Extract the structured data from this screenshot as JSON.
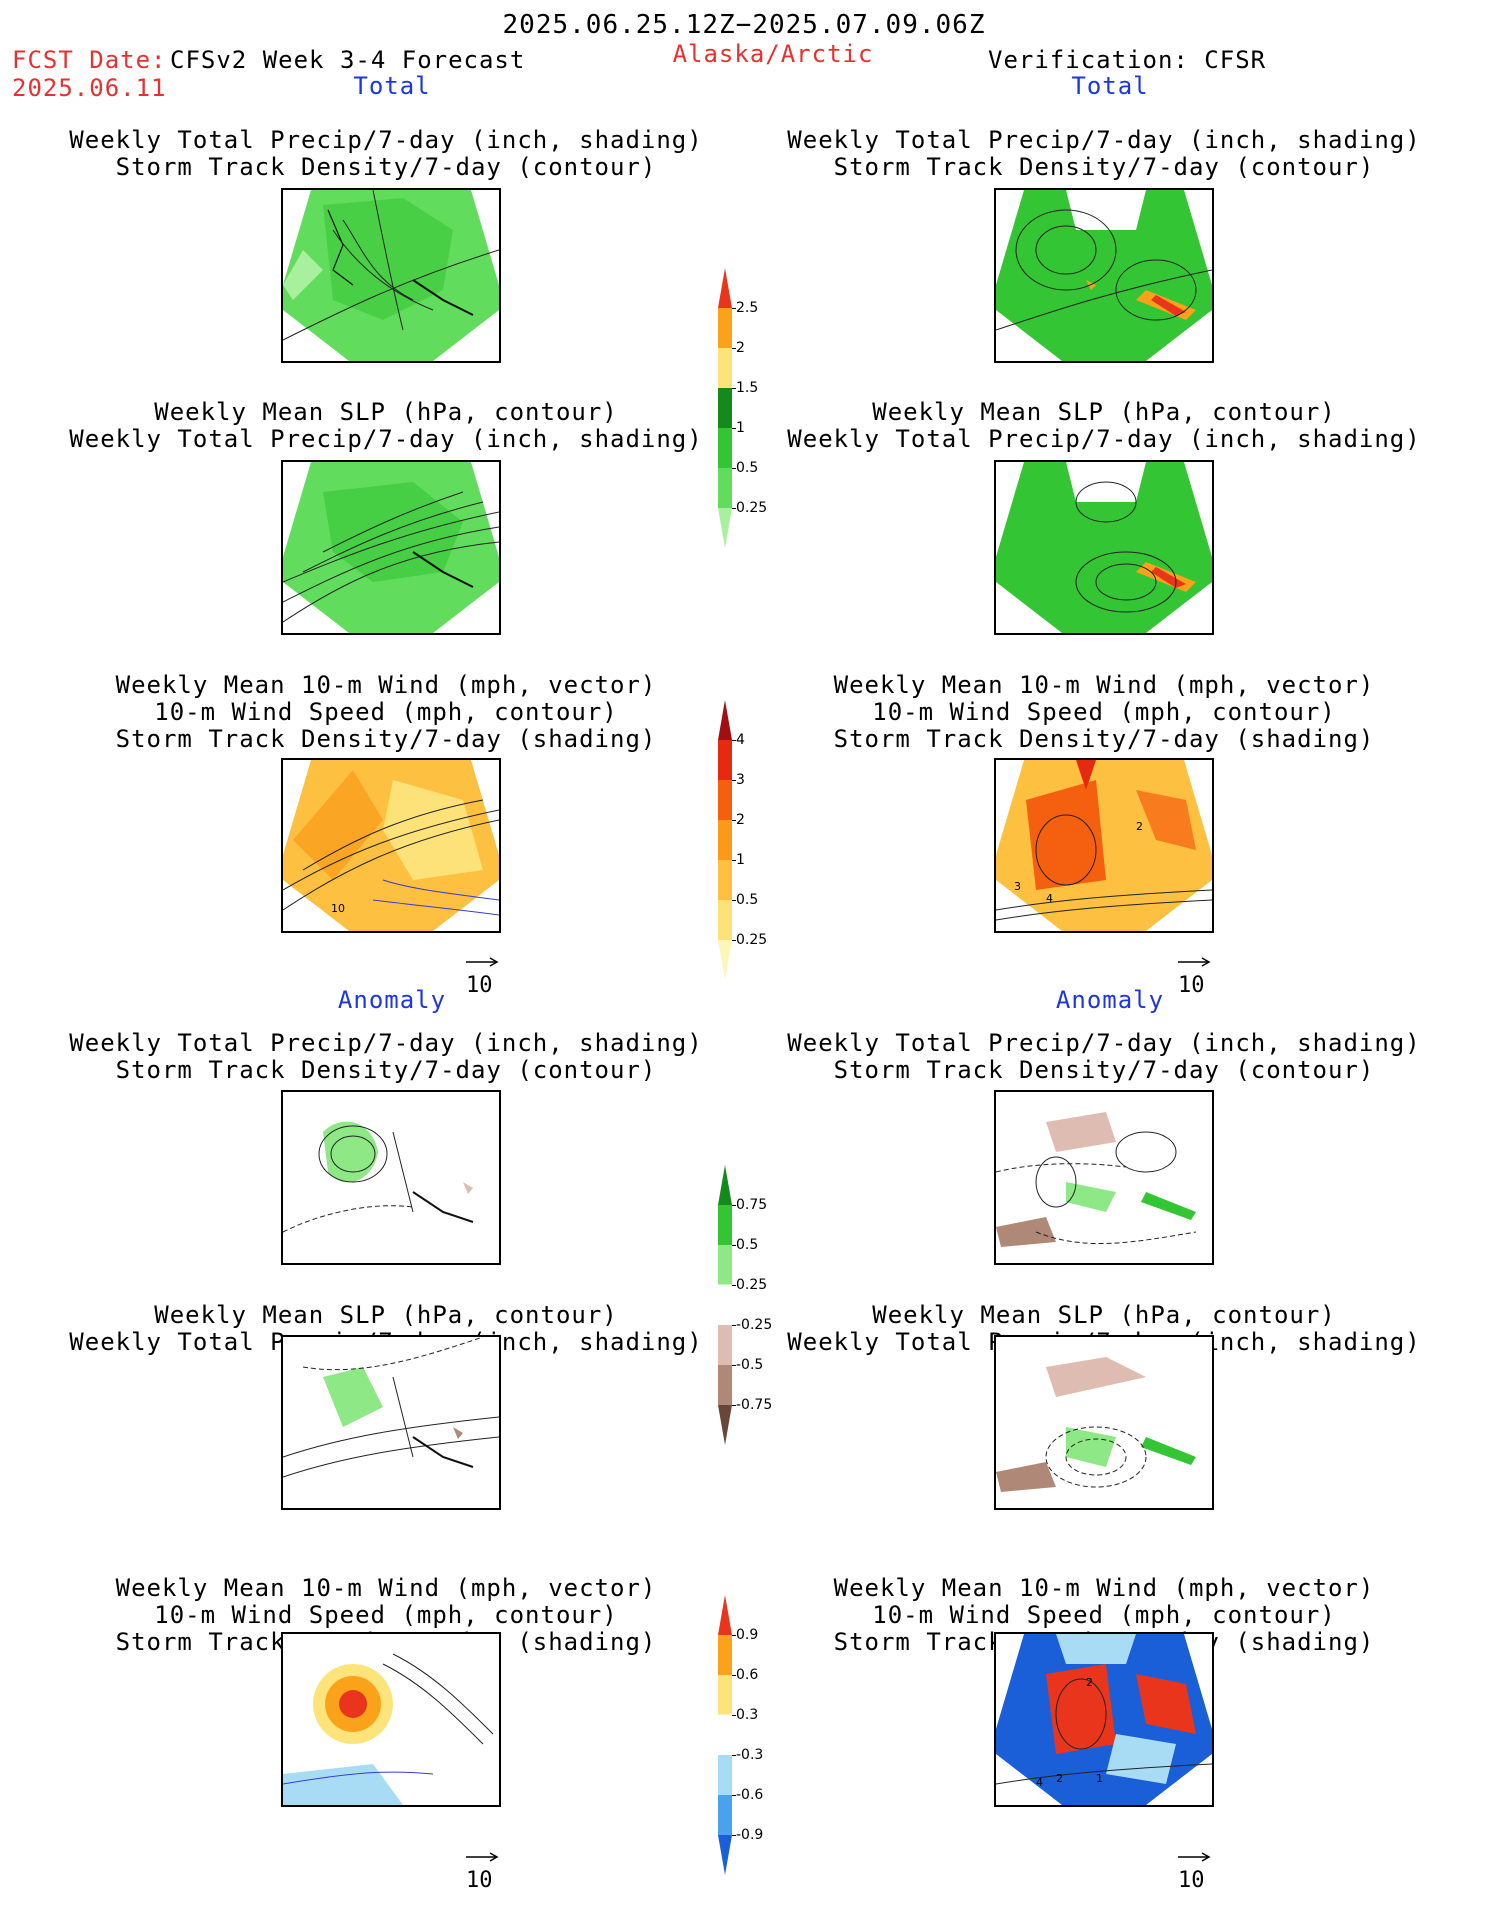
{
  "header": {
    "date_range": "2025.06.25.12Z−2025.07.09.06Z",
    "fcst_label": "FCST Date:",
    "fcst_date": "2025.06.11",
    "forecast_name": "CFSv2 Week 3-4 Forecast",
    "region": "Alaska/Arctic",
    "verification": "Verification: CFSR"
  },
  "sections": {
    "total": "Total",
    "anomaly": "Anomaly"
  },
  "titles": {
    "precip_storm": [
      "Weekly Total Precip/7-day (inch, shading)",
      "Storm Track Density/7-day (contour)"
    ],
    "slp_precip": [
      "Weekly Mean SLP (hPa, contour)",
      "Weekly Total Precip/7-day (inch, shading)"
    ],
    "wind_storm": [
      "Weekly Mean 10-m Wind (mph, vector)",
      "10-m Wind Speed (mph, contour)",
      "Storm Track Density/7-day (shading)"
    ]
  },
  "vector_ref": "10",
  "panel_contour_labels": {
    "left_wind_total": "10",
    "right_wind_total": [
      "2",
      "3",
      "4"
    ],
    "right_wind_anom": [
      "2",
      "4",
      "2",
      "1"
    ]
  },
  "colorbars": [
    {
      "name": "precip-total",
      "labels": [
        "2.5",
        "2",
        "1.5",
        "1",
        "0.5",
        "0.25"
      ],
      "colors": [
        "#e8351c",
        "#f9a21a",
        "#fde47a",
        "#158a1c",
        "#34c534",
        "#62dc5c",
        "#a8f09e"
      ]
    },
    {
      "name": "storm-total",
      "labels": [
        "4",
        "3",
        "2",
        "1",
        "0.5",
        "0.25"
      ],
      "colors": [
        "#a01010",
        "#e42a10",
        "#f56010",
        "#fa9a1a",
        "#fdc040",
        "#fde27a",
        "#fef6b8"
      ]
    },
    {
      "name": "precip-anom",
      "labels": [
        "0.75",
        "0.5",
        "0.25",
        "-0.25",
        "-0.5",
        "-0.75"
      ],
      "colors": [
        "#158a1c",
        "#34c534",
        "#8ee886",
        "#ffffff",
        "#dfbcb2",
        "#b08878",
        "#6a4638"
      ]
    },
    {
      "name": "storm-anom",
      "labels": [
        "0.9",
        "0.6",
        "0.3",
        "-0.3",
        "-0.6",
        "-0.9"
      ],
      "colors": [
        "#e8351c",
        "#f9a21a",
        "#fde47a",
        "#ffffff",
        "#a8dcf4",
        "#4aa2ec",
        "#1a5fd8"
      ]
    }
  ],
  "colors": {
    "header_red": "#e8312f",
    "section_blue": "#1c35e6",
    "green_shade": "#52d24a",
    "orange_shade": "#f8a21a"
  }
}
